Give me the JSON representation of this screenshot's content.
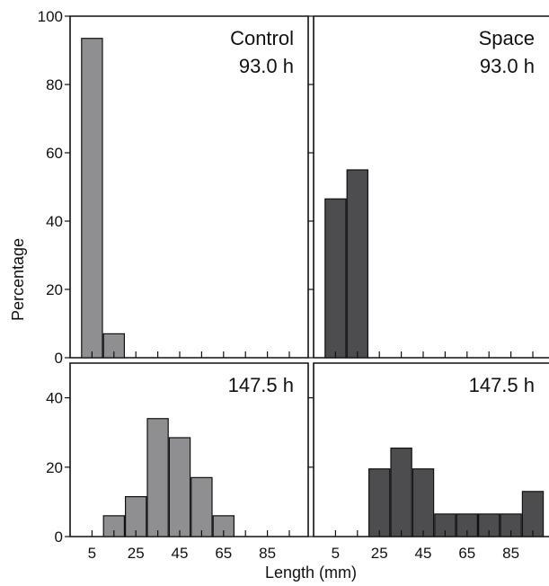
{
  "chart_data": [
    {
      "type": "bar",
      "panel": "top-left",
      "labels": [
        "Control",
        "93.0 h"
      ],
      "series_color": "#8f8f92",
      "bins": [
        5,
        15,
        25,
        35,
        45,
        55,
        65,
        75,
        85,
        95
      ],
      "values": [
        93.5,
        7.0,
        0,
        0,
        0,
        0,
        0,
        0,
        0,
        0
      ],
      "ylim": [
        0,
        100
      ],
      "yticks": [
        0,
        20,
        40,
        60,
        80,
        100
      ]
    },
    {
      "type": "bar",
      "panel": "top-right",
      "labels": [
        "Space",
        "93.0 h"
      ],
      "series_color": "#4d4d50",
      "bins": [
        5,
        15,
        25,
        35,
        45,
        55,
        65,
        75,
        85,
        95
      ],
      "values": [
        46.5,
        55.0,
        0,
        0,
        0,
        0,
        0,
        0,
        0,
        0
      ],
      "ylim": [
        0,
        100
      ],
      "yticks": [
        0,
        20,
        40,
        60,
        80,
        100
      ]
    },
    {
      "type": "bar",
      "panel": "bottom-left",
      "labels": [
        "147.5 h"
      ],
      "series_color": "#8f8f92",
      "bins": [
        5,
        15,
        25,
        35,
        45,
        55,
        65,
        75,
        85,
        95
      ],
      "values": [
        0,
        6.0,
        11.5,
        34.0,
        28.5,
        17.0,
        6.0,
        0,
        0,
        0
      ],
      "ylim": [
        0,
        50
      ],
      "yticks": [
        0,
        20,
        40
      ],
      "xticks": [
        "5",
        "25",
        "45",
        "65",
        "85"
      ]
    },
    {
      "type": "bar",
      "panel": "bottom-right",
      "labels": [
        "147.5 h"
      ],
      "series_color": "#4d4d50",
      "bins": [
        5,
        15,
        25,
        35,
        45,
        55,
        65,
        75,
        85,
        95
      ],
      "values": [
        0,
        0,
        19.5,
        25.5,
        19.5,
        6.5,
        6.5,
        6.5,
        6.5,
        13.0
      ],
      "ylim": [
        0,
        50
      ],
      "yticks": [
        0,
        20,
        40
      ],
      "xticks": [
        "5",
        "25",
        "45",
        "65",
        "85"
      ]
    }
  ],
  "ylabel": "Percentage",
  "xlabel": "Length (mm)"
}
